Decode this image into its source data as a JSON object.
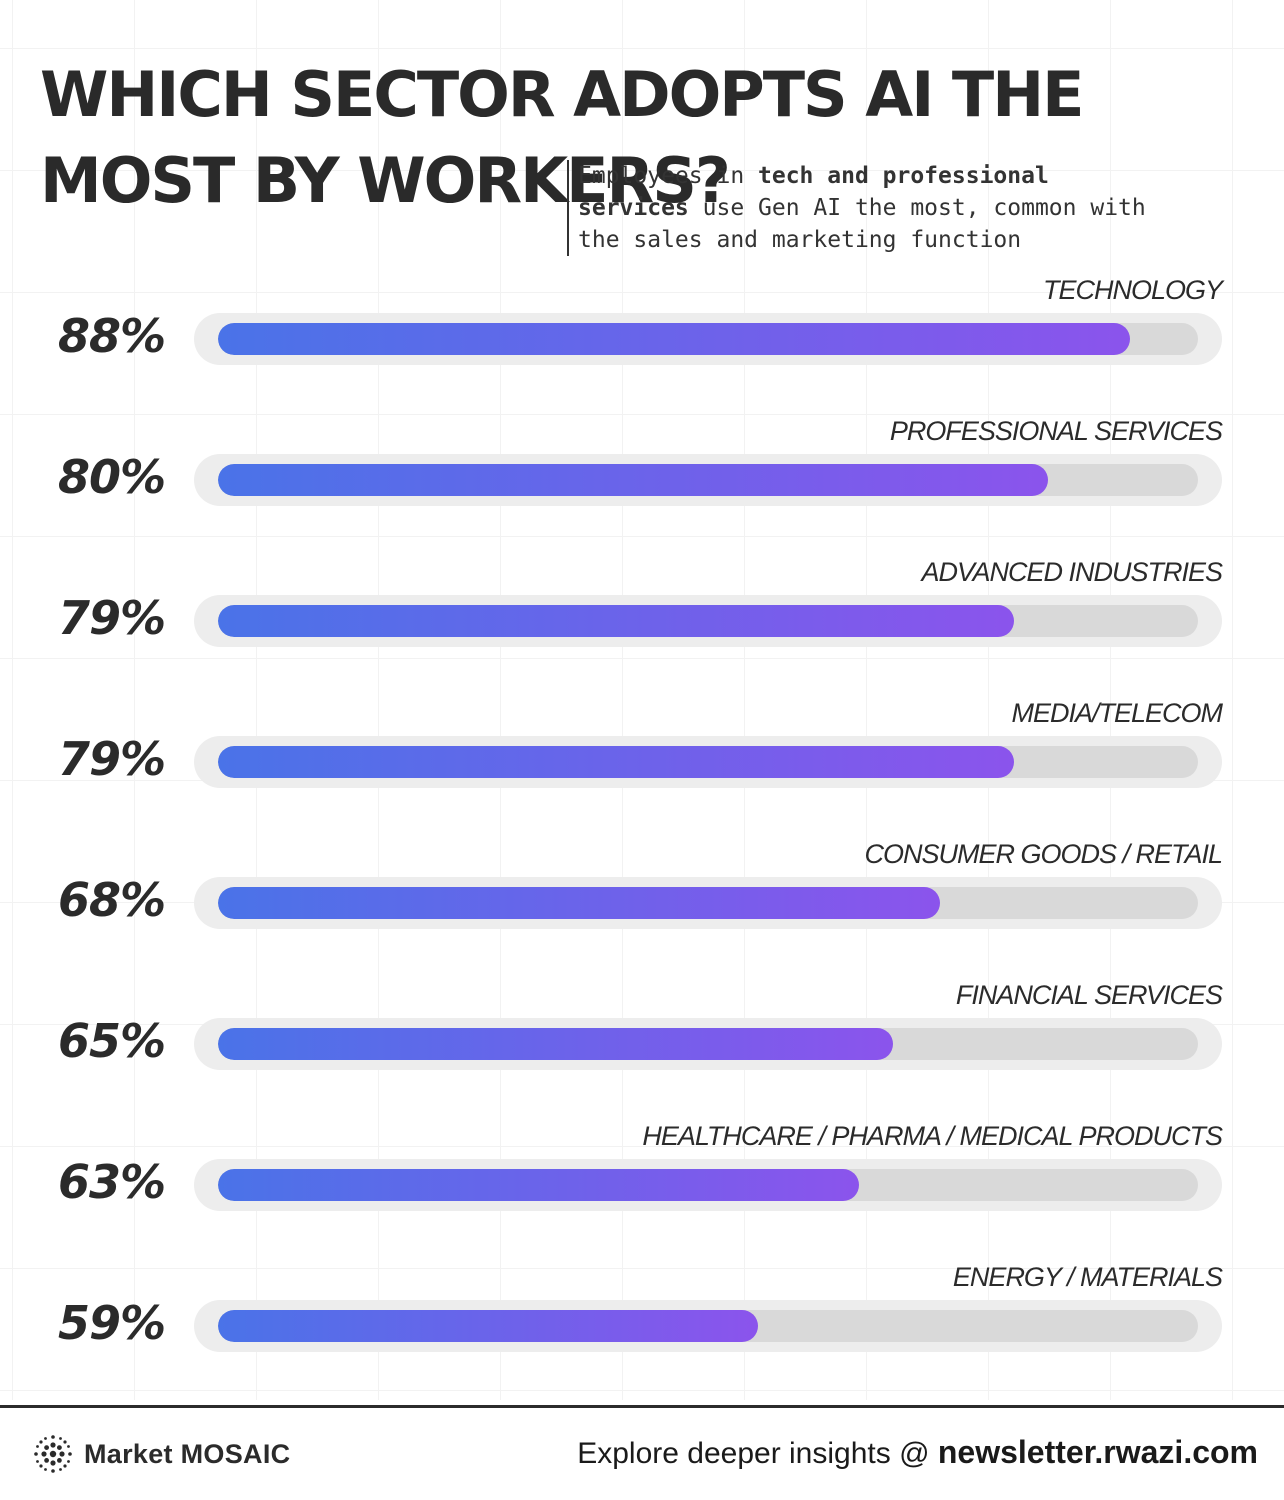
{
  "header": {
    "title": "WHICH SECTOR ADOPTS AI THE MOST BY WORKERS?",
    "subtitle_pre": "Employees in ",
    "subtitle_bold": "tech and professional services",
    "subtitle_post": " use Gen AI the most, common with the sales and marketing function"
  },
  "chart_data": {
    "type": "bar",
    "orientation": "horizontal",
    "categories": [
      "TECHNOLOGY",
      "PROFESSIONAL SERVICES",
      "ADVANCED INDUSTRIES",
      "MEDIA/TELECOM",
      "CONSUMER GOODS / RETAIL",
      "FINANCIAL SERVICES",
      "HEALTHCARE / PHARMA / MEDICAL PRODUCTS",
      "ENERGY / MATERIALS"
    ],
    "values": [
      88,
      80,
      79,
      79,
      68,
      65,
      63,
      59
    ],
    "value_labels": [
      "88%",
      "80%",
      "79%",
      "79%",
      "68%",
      "65%",
      "63%",
      "59%"
    ],
    "fill_fractions": [
      0.931,
      0.847,
      0.812,
      0.812,
      0.737,
      0.689,
      0.654,
      0.551
    ],
    "colors": {
      "fill_start": "#4a73e8",
      "fill_end": "#8b54ec",
      "track": "#d9d9d9",
      "track_outer": "#ededed"
    },
    "grid": false,
    "legend": "none"
  },
  "footer": {
    "brand": "Market MOSAIC",
    "brand_icon": "dot-cluster-icon",
    "cta_prefix": "Explore deeper insights @ ",
    "cta_url": "newsletter.rwazi.com"
  }
}
